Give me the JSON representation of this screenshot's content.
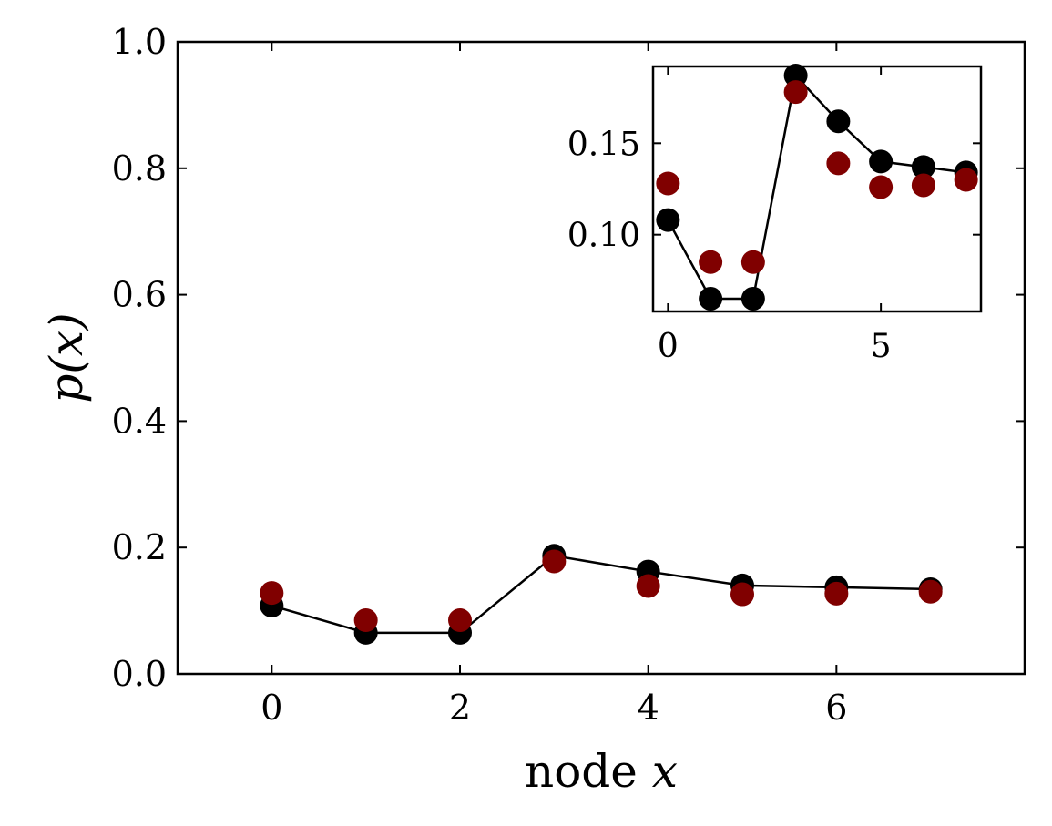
{
  "chart_data": [
    {
      "type": "line",
      "xlabel_text": "node ",
      "xlabel_var": "x",
      "ylabel_text": "p(x)",
      "xlim": [
        -1,
        8
      ],
      "ylim": [
        0,
        1
      ],
      "xticks": [
        0,
        2,
        4,
        6
      ],
      "yticks": [
        0,
        0.2,
        0.4,
        0.6,
        0.8,
        1.0
      ],
      "xtick_labels": [
        "0",
        "2",
        "4",
        "6"
      ],
      "ytick_labels": [
        "0.0",
        "0.2",
        "0.4",
        "0.6",
        "0.8",
        "1.0"
      ],
      "grid": false,
      "series": [
        {
          "style": "line-markers",
          "color": "#000000",
          "x": [
            0,
            1,
            2,
            3,
            4,
            5,
            6,
            7
          ],
          "y": [
            0.108,
            0.065,
            0.065,
            0.187,
            0.162,
            0.14,
            0.137,
            0.134
          ]
        },
        {
          "style": "markers",
          "color": "#800000",
          "x": [
            0,
            1,
            2,
            3,
            4,
            5,
            6,
            7
          ],
          "y": [
            0.128,
            0.085,
            0.085,
            0.178,
            0.139,
            0.126,
            0.127,
            0.13
          ]
        }
      ]
    },
    {
      "type": "line",
      "role": "inset",
      "xlim": [
        -0.35,
        7.35
      ],
      "ylim": [
        0.058,
        0.192
      ],
      "xticks": [
        0,
        5
      ],
      "yticks": [
        0.1,
        0.15
      ],
      "xtick_labels": [
        "0",
        "5"
      ],
      "ytick_labels": [
        "0.10",
        "0.15"
      ],
      "grid": false,
      "series": [
        {
          "style": "line-markers",
          "color": "#000000",
          "x": [
            0,
            1,
            2,
            3,
            4,
            5,
            6,
            7
          ],
          "y": [
            0.108,
            0.065,
            0.065,
            0.187,
            0.162,
            0.14,
            0.137,
            0.134
          ]
        },
        {
          "style": "markers",
          "color": "#800000",
          "x": [
            0,
            1,
            2,
            3,
            4,
            5,
            6,
            7
          ],
          "y": [
            0.128,
            0.085,
            0.085,
            0.178,
            0.139,
            0.126,
            0.127,
            0.13
          ]
        }
      ]
    }
  ]
}
